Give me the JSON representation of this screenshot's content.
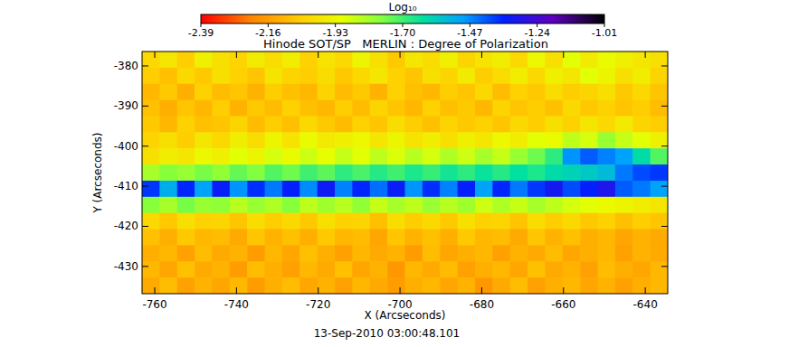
{
  "chart_data": {
    "type": "heatmap",
    "title": "Hinode SOT/SP   MERLIN : Degree of Polarization",
    "x_label": "X (Arcseconds)",
    "y_label": "Y (Arcseconds)",
    "annotation": "13-Sep-2010 03:00:48.101",
    "colorbar_label": "Log₁₀",
    "color_range": [
      -2.39,
      -1.01
    ],
    "color_ticks": [
      -2.39,
      -2.16,
      -1.93,
      {
        "value": -1.7,
        "label": "-1.70"
      },
      -1.47,
      -1.24,
      -1.01
    ],
    "xlim": [
      -763.1,
      -634.5
    ],
    "ylim": [
      -436.8,
      -376.4
    ],
    "xticks": [
      -760,
      -740,
      -720,
      -700,
      -680,
      -660,
      -640
    ],
    "yticks": [
      -430,
      -420,
      -410,
      -400,
      -390,
      -380
    ],
    "z": [
      [
        -2.02,
        -1.98,
        -2.05,
        -1.95,
        -2.0,
        -2.03,
        -1.97,
        -2.01,
        -1.96,
        -2.04,
        -1.99,
        -2.02,
        -1.94,
        -2.0,
        -2.06,
        -1.98,
        -2.01,
        -1.95,
        -2.03,
        -1.99,
        -1.96,
        -2.02,
        -1.93,
        -2.0,
        -1.9,
        -1.97,
        -1.92,
        -1.95,
        -1.98,
        -2.0
      ],
      [
        -2.05,
        -2.08,
        -2.02,
        -2.06,
        -2.0,
        -2.04,
        -2.07,
        -1.99,
        -2.03,
        -2.05,
        -2.01,
        -2.06,
        -2.02,
        -1.98,
        -2.04,
        -2.07,
        -2.0,
        -2.03,
        -1.97,
        -2.05,
        -2.01,
        -1.96,
        -2.02,
        -1.95,
        -1.98,
        -1.9,
        -1.94,
        -2.0,
        -1.96,
        -2.03
      ],
      [
        -2.1,
        -2.06,
        -2.12,
        -2.04,
        -2.09,
        -2.07,
        -2.11,
        -2.05,
        -2.08,
        -2.1,
        -2.03,
        -2.09,
        -2.06,
        -2.11,
        -2.04,
        -2.08,
        -2.1,
        -2.05,
        -2.07,
        -2.02,
        -2.09,
        -2.04,
        -2.06,
        -2.01,
        -2.05,
        -2.03,
        -2.0,
        -2.06,
        -2.02,
        -2.07
      ],
      [
        -2.08,
        -2.12,
        -2.07,
        -2.1,
        -2.05,
        -2.11,
        -2.06,
        -2.09,
        -2.04,
        -2.08,
        -2.1,
        -2.05,
        -2.09,
        -2.03,
        -2.07,
        -2.1,
        -2.04,
        -2.08,
        -2.06,
        -2.1,
        -2.03,
        -2.07,
        -2.05,
        -2.08,
        -2.02,
        -2.06,
        -2.04,
        -2.07,
        -2.05,
        -2.09
      ],
      [
        -2.06,
        -2.1,
        -2.04,
        -2.08,
        -2.07,
        -2.03,
        -2.09,
        -2.05,
        -2.08,
        -2.02,
        -2.06,
        -2.09,
        -2.04,
        -2.07,
        -2.01,
        -2.05,
        -2.08,
        -2.03,
        -2.06,
        -2.04,
        -2.07,
        -2.02,
        -2.05,
        -2.0,
        -2.04,
        -1.98,
        -2.02,
        -1.97,
        -2.03,
        -2.05
      ],
      [
        -2.03,
        -2.0,
        -2.05,
        -1.98,
        -2.02,
        -1.96,
        -2.01,
        -1.94,
        -1.99,
        -1.92,
        -1.97,
        -1.95,
        -1.93,
        -1.98,
        -1.94,
        -1.99,
        -1.96,
        -2.0,
        -1.95,
        -1.98,
        -1.93,
        -1.96,
        -1.9,
        -1.92,
        -1.85,
        -1.88,
        -1.8,
        -1.86,
        -1.9,
        -1.95
      ],
      [
        -2.0,
        -1.96,
        -1.98,
        -1.93,
        -1.95,
        -1.9,
        -1.94,
        -1.88,
        -1.92,
        -1.87,
        -1.91,
        -1.86,
        -1.9,
        -1.85,
        -1.89,
        -1.84,
        -1.88,
        -1.83,
        -1.87,
        -1.82,
        -1.86,
        -1.8,
        -1.75,
        -1.68,
        -1.48,
        -1.42,
        -1.46,
        -1.5,
        -1.62,
        -1.72
      ],
      [
        -1.82,
        -1.78,
        -1.8,
        -1.76,
        -1.79,
        -1.74,
        -1.77,
        -1.72,
        -1.75,
        -1.7,
        -1.73,
        -1.68,
        -1.71,
        -1.67,
        -1.7,
        -1.66,
        -1.69,
        -1.65,
        -1.68,
        -1.64,
        -1.67,
        -1.63,
        -1.66,
        -1.62,
        -1.6,
        -1.58,
        -1.55,
        -1.45,
        -1.4,
        -1.38
      ],
      [
        -1.38,
        -1.52,
        -1.36,
        -1.5,
        -1.34,
        -1.48,
        -1.37,
        -1.45,
        -1.35,
        -1.47,
        -1.33,
        -1.46,
        -1.36,
        -1.44,
        -1.34,
        -1.48,
        -1.37,
        -1.46,
        -1.35,
        -1.5,
        -1.36,
        -1.45,
        -1.38,
        -1.32,
        -1.4,
        -1.35,
        -1.3,
        -1.42,
        -1.45,
        -1.5
      ],
      [
        -1.78,
        -1.82,
        -1.76,
        -1.8,
        -1.79,
        -1.84,
        -1.8,
        -1.83,
        -1.78,
        -1.85,
        -1.81,
        -1.84,
        -1.79,
        -1.86,
        -1.82,
        -1.85,
        -1.8,
        -1.84,
        -1.81,
        -1.87,
        -1.83,
        -1.86,
        -1.82,
        -1.85,
        -1.88,
        -1.9,
        -1.92,
        -1.94,
        -1.96,
        -1.98
      ],
      [
        -2.02,
        -2.06,
        -2.0,
        -2.04,
        -2.03,
        -2.07,
        -2.01,
        -2.05,
        -2.02,
        -2.06,
        -2.0,
        -2.04,
        -2.03,
        -2.08,
        -2.01,
        -2.05,
        -2.02,
        -2.06,
        -2.0,
        -2.04,
        -2.03,
        -2.07,
        -2.01,
        -2.05,
        -2.02,
        -2.06,
        -2.04,
        -2.08,
        -2.05,
        -2.07
      ],
      [
        -2.08,
        -2.12,
        -2.06,
        -2.1,
        -2.09,
        -2.13,
        -2.07,
        -2.11,
        -2.08,
        -2.12,
        -2.06,
        -2.1,
        -2.09,
        -2.14,
        -2.07,
        -2.11,
        -2.08,
        -2.12,
        -2.06,
        -2.1,
        -2.09,
        -2.13,
        -2.07,
        -2.11,
        -2.08,
        -2.12,
        -2.1,
        -2.14,
        -2.11,
        -2.13
      ],
      [
        -2.12,
        -2.1,
        -2.15,
        -2.09,
        -2.13,
        -2.11,
        -2.16,
        -2.1,
        -2.14,
        -2.08,
        -2.12,
        -2.15,
        -2.1,
        -2.13,
        -2.11,
        -2.16,
        -2.09,
        -2.14,
        -2.12,
        -2.1,
        -2.15,
        -2.11,
        -2.13,
        -2.09,
        -2.14,
        -2.12,
        -2.1,
        -2.15,
        -2.11,
        -2.13
      ],
      [
        -2.1,
        -2.14,
        -2.08,
        -2.13,
        -2.11,
        -2.16,
        -2.09,
        -2.12,
        -2.15,
        -2.1,
        -2.13,
        -2.08,
        -2.14,
        -2.11,
        -2.17,
        -2.1,
        -2.13,
        -2.09,
        -2.15,
        -2.12,
        -2.1,
        -2.14,
        -2.08,
        -2.13,
        -2.11,
        -2.15,
        -2.09,
        -2.12,
        -2.14,
        -2.1
      ],
      [
        -2.13,
        -2.09,
        -2.15,
        -2.11,
        -2.14,
        -2.1,
        -2.16,
        -2.12,
        -2.09,
        -2.14,
        -2.11,
        -2.15,
        -2.1,
        -2.13,
        -2.16,
        -2.12,
        -2.1,
        -2.14,
        -2.11,
        -2.17,
        -2.13,
        -2.09,
        -2.15,
        -2.12,
        -2.1,
        -2.14,
        -2.11,
        -2.15,
        -2.12,
        -2.1
      ]
    ]
  }
}
